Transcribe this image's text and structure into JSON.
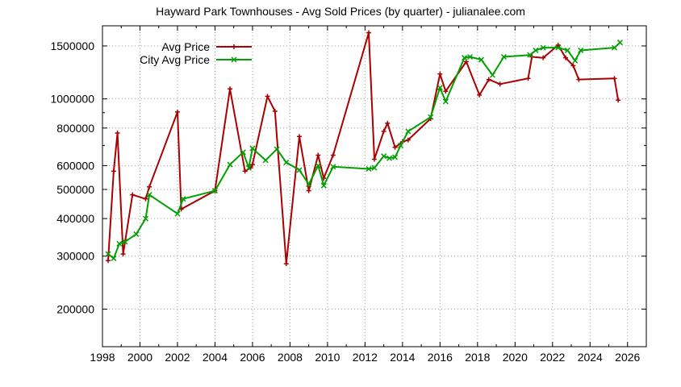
{
  "chart_data": {
    "type": "line",
    "title": "Hayward Park Townhouses - Avg Sold Prices (by quarter) - julianalee.com",
    "xlabel": "",
    "ylabel": "",
    "xlim": [
      1998,
      2027
    ],
    "ylim": [
      150000,
      1750000
    ],
    "y_scale": "log",
    "grid": true,
    "legend_position": "top-left",
    "x_ticks": [
      "1998",
      "2000",
      "2002",
      "2004",
      "2006",
      "2008",
      "2010",
      "2012",
      "2014",
      "2016",
      "2018",
      "2020",
      "2022",
      "2024",
      "2026"
    ],
    "y_ticks": [
      "200000",
      "300000",
      "400000",
      "500000",
      "600000",
      "800000",
      "1000000",
      "1500000"
    ],
    "series": [
      {
        "name": "Avg Price",
        "color": "#aa0000",
        "marker": "plus",
        "points": [
          [
            1998.3,
            290000
          ],
          [
            1998.6,
            575000
          ],
          [
            1998.8,
            770000
          ],
          [
            1999.1,
            305000
          ],
          [
            1999.6,
            480000
          ],
          [
            2000.3,
            465000
          ],
          [
            2000.5,
            510000
          ],
          [
            2002.0,
            905000
          ],
          [
            2002.2,
            430000
          ],
          [
            2004.0,
            495000
          ],
          [
            2004.8,
            1080000
          ],
          [
            2005.6,
            575000
          ],
          [
            2005.9,
            590000
          ],
          [
            2006.0,
            605000
          ],
          [
            2006.8,
            1020000
          ],
          [
            2007.2,
            910000
          ],
          [
            2007.8,
            283000
          ],
          [
            2008.5,
            750000
          ],
          [
            2009.0,
            495000
          ],
          [
            2009.5,
            650000
          ],
          [
            2009.8,
            545000
          ],
          [
            2010.3,
            650000
          ],
          [
            2012.2,
            1660000
          ],
          [
            2012.5,
            630000
          ],
          [
            2013.0,
            780000
          ],
          [
            2013.2,
            830000
          ],
          [
            2013.6,
            690000
          ],
          [
            2014.0,
            720000
          ],
          [
            2014.3,
            730000
          ],
          [
            2015.5,
            860000
          ],
          [
            2016.0,
            1210000
          ],
          [
            2016.3,
            1060000
          ],
          [
            2017.4,
            1330000
          ],
          [
            2018.1,
            1030000
          ],
          [
            2018.6,
            1160000
          ],
          [
            2019.2,
            1120000
          ],
          [
            2020.7,
            1170000
          ],
          [
            2020.9,
            1380000
          ],
          [
            2021.5,
            1370000
          ],
          [
            2022.3,
            1510000
          ],
          [
            2022.7,
            1370000
          ],
          [
            2023.1,
            1290000
          ],
          [
            2023.4,
            1160000
          ],
          [
            2025.3,
            1170000
          ],
          [
            2025.5,
            990000
          ]
        ]
      },
      {
        "name": "City Avg Price",
        "color": "#00a000",
        "marker": "cross",
        "points": [
          [
            1998.3,
            305000
          ],
          [
            1998.6,
            295000
          ],
          [
            1998.9,
            330000
          ],
          [
            1999.2,
            335000
          ],
          [
            1999.8,
            355000
          ],
          [
            2000.3,
            400000
          ],
          [
            2000.5,
            480000
          ],
          [
            2002.0,
            415000
          ],
          [
            2002.3,
            465000
          ],
          [
            2004.0,
            495000
          ],
          [
            2004.8,
            605000
          ],
          [
            2005.5,
            665000
          ],
          [
            2005.8,
            590000
          ],
          [
            2006.0,
            685000
          ],
          [
            2006.7,
            625000
          ],
          [
            2007.3,
            680000
          ],
          [
            2007.8,
            615000
          ],
          [
            2008.5,
            580000
          ],
          [
            2009.0,
            520000
          ],
          [
            2009.5,
            600000
          ],
          [
            2009.8,
            515000
          ],
          [
            2010.3,
            595000
          ],
          [
            2012.2,
            585000
          ],
          [
            2012.5,
            590000
          ],
          [
            2013.0,
            645000
          ],
          [
            2013.3,
            635000
          ],
          [
            2013.6,
            640000
          ],
          [
            2013.9,
            700000
          ],
          [
            2014.3,
            780000
          ],
          [
            2015.5,
            870000
          ],
          [
            2016.0,
            1090000
          ],
          [
            2016.3,
            980000
          ],
          [
            2017.3,
            1370000
          ],
          [
            2017.6,
            1380000
          ],
          [
            2018.2,
            1350000
          ],
          [
            2018.8,
            1200000
          ],
          [
            2019.4,
            1380000
          ],
          [
            2020.8,
            1400000
          ],
          [
            2021.1,
            1450000
          ],
          [
            2021.5,
            1480000
          ],
          [
            2022.3,
            1480000
          ],
          [
            2022.8,
            1450000
          ],
          [
            2023.2,
            1340000
          ],
          [
            2023.5,
            1450000
          ],
          [
            2025.3,
            1480000
          ],
          [
            2025.6,
            1540000
          ]
        ]
      }
    ]
  }
}
